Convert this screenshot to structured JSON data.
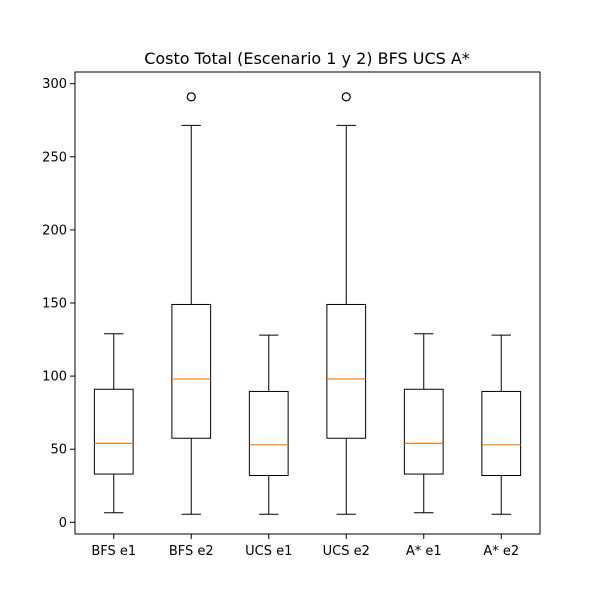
{
  "chart_data": {
    "type": "box",
    "title": "Costo Total (Escenario 1 y 2) BFS UCS A*",
    "xlabel": "",
    "ylabel": "",
    "ylim": [
      -8,
      308
    ],
    "yticks": [
      0,
      50,
      100,
      150,
      200,
      250,
      300
    ],
    "grid": false,
    "legend": "none",
    "categories": [
      "BFS e1",
      "BFS e2",
      "UCS e1",
      "UCS e2",
      "A* e1",
      "A* e2"
    ],
    "boxes": [
      {
        "label": "BFS e1",
        "whisker_low": 6.5,
        "q1": 33,
        "median": 54,
        "q3": 91,
        "whisker_high": 129,
        "outliers": []
      },
      {
        "label": "BFS e2",
        "whisker_low": 5.5,
        "q1": 57.5,
        "median": 98,
        "q3": 149,
        "whisker_high": 271.5,
        "outliers": [
          291
        ]
      },
      {
        "label": "UCS e1",
        "whisker_low": 5.5,
        "q1": 32,
        "median": 53,
        "q3": 89.5,
        "whisker_high": 128,
        "outliers": []
      },
      {
        "label": "UCS e2",
        "whisker_low": 5.5,
        "q1": 57.5,
        "median": 98,
        "q3": 149,
        "whisker_high": 271.5,
        "outliers": [
          291
        ]
      },
      {
        "label": "A* e1",
        "whisker_low": 6.5,
        "q1": 33,
        "median": 54,
        "q3": 91,
        "whisker_high": 129,
        "outliers": []
      },
      {
        "label": "A* e2",
        "whisker_low": 5.5,
        "q1": 32,
        "median": 53,
        "q3": 89.5,
        "whisker_high": 128,
        "outliers": []
      }
    ],
    "colors": {
      "box": "#000000",
      "median": "#ff7f0e",
      "outlier": "#000000",
      "axes": "#000000",
      "background": "#ffffff"
    }
  }
}
